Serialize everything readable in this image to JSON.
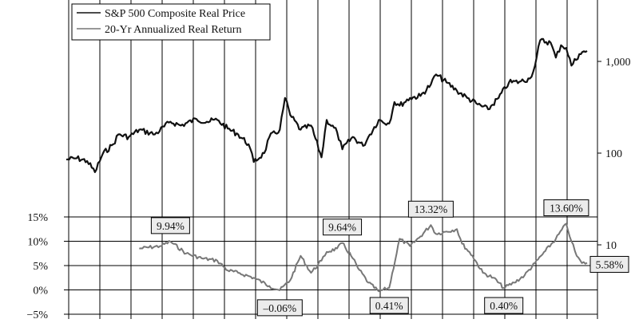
{
  "chart_data": {
    "type": "line",
    "title": "",
    "xlabel": "",
    "legend": {
      "placement": "top-left",
      "entries": [
        "S&P 500 Composite Real Price",
        "20-Yr Annualized Real Return"
      ]
    },
    "grid": "vertical",
    "y_left": {
      "label": "",
      "ticks": [
        "15%",
        "10%",
        "5%",
        "0%",
        "−5%"
      ],
      "tick_values": [
        15,
        10,
        5,
        0,
        -5
      ],
      "range": [
        -5,
        15
      ]
    },
    "y_right": {
      "label": "",
      "scale": "log",
      "ticks": [
        "1,000",
        "100",
        "10"
      ],
      "tick_values": [
        1000,
        100,
        10
      ]
    },
    "series": [
      {
        "name": "S&P 500 Composite Real Price",
        "axis": "right",
        "color": "#111111",
        "x": [
          0.0,
          0.02,
          0.04,
          0.055,
          0.07,
          0.09,
          0.1,
          0.12,
          0.14,
          0.17,
          0.2,
          0.22,
          0.25,
          0.27,
          0.29,
          0.31,
          0.33,
          0.35,
          0.36,
          0.38,
          0.39,
          0.41,
          0.42,
          0.43,
          0.45,
          0.47,
          0.49,
          0.5,
          0.52,
          0.53,
          0.55,
          0.57,
          0.58,
          0.6,
          0.62,
          0.63,
          0.64,
          0.66,
          0.68,
          0.7,
          0.71,
          0.73,
          0.75,
          0.77,
          0.79,
          0.81,
          0.83,
          0.85,
          0.87,
          0.89,
          0.9,
          0.91,
          0.93,
          0.94,
          0.95,
          0.96,
          0.97,
          0.985,
          1.0
        ],
        "values": [
          85,
          88,
          82,
          62,
          98,
          125,
          160,
          150,
          180,
          160,
          220,
          200,
          235,
          220,
          230,
          185,
          160,
          125,
          80,
          100,
          150,
          180,
          400,
          260,
          180,
          200,
          90,
          230,
          170,
          110,
          150,
          120,
          150,
          230,
          210,
          360,
          330,
          400,
          420,
          560,
          720,
          590,
          480,
          400,
          340,
          300,
          400,
          590,
          600,
          650,
          900,
          1700,
          1600,
          1100,
          1500,
          1400,
          900,
          1200,
          1300
        ]
      },
      {
        "name": "20-Yr Annualized Real Return",
        "axis": "left",
        "color": "#777777",
        "x": [
          0.14,
          0.18,
          0.2,
          0.23,
          0.26,
          0.29,
          0.31,
          0.33,
          0.36,
          0.39,
          0.41,
          0.43,
          0.45,
          0.47,
          0.49,
          0.5,
          0.52,
          0.53,
          0.55,
          0.56,
          0.58,
          0.6,
          0.62,
          0.64,
          0.66,
          0.68,
          0.7,
          0.71,
          0.73,
          0.75,
          0.76,
          0.78,
          0.8,
          0.82,
          0.84,
          0.86,
          0.88,
          0.9,
          0.92,
          0.94,
          0.96,
          0.97,
          0.98,
          0.99,
          1.0
        ],
        "values": [
          8.5,
          9.0,
          9.94,
          7.5,
          6.5,
          6.0,
          4.0,
          3.5,
          2.5,
          0.8,
          -0.06,
          2.0,
          7.0,
          3.5,
          6.0,
          7.8,
          8.5,
          9.64,
          6.5,
          4.5,
          1.5,
          -0.3,
          0.41,
          10.5,
          9.0,
          11.0,
          13.32,
          11.5,
          12.0,
          12.5,
          9.5,
          7.0,
          3.5,
          2.5,
          0.4,
          1.5,
          3.0,
          5.5,
          8.0,
          10.5,
          13.6,
          10.0,
          7.0,
          5.5,
          5.58
        ]
      }
    ],
    "annotations": [
      {
        "label": "9.94%",
        "series": 1,
        "x": 0.2,
        "value": 9.94,
        "placement": "above"
      },
      {
        "label": "–0.06%",
        "series": 1,
        "x": 0.41,
        "value": -0.06,
        "placement": "below"
      },
      {
        "label": "9.64%",
        "series": 1,
        "x": 0.53,
        "value": 9.64,
        "placement": "above"
      },
      {
        "label": "0.41%",
        "series": 1,
        "x": 0.62,
        "value": 0.41,
        "placement": "below"
      },
      {
        "label": "13.32%",
        "series": 1,
        "x": 0.7,
        "value": 13.32,
        "placement": "above"
      },
      {
        "label": "0.40%",
        "series": 1,
        "x": 0.84,
        "value": 0.4,
        "placement": "below"
      },
      {
        "label": "13.60%",
        "series": 1,
        "x": 0.96,
        "value": 13.6,
        "placement": "above"
      },
      {
        "label": "5.58%",
        "series": 1,
        "x": 1.0,
        "value": 5.58,
        "placement": "right"
      }
    ]
  }
}
